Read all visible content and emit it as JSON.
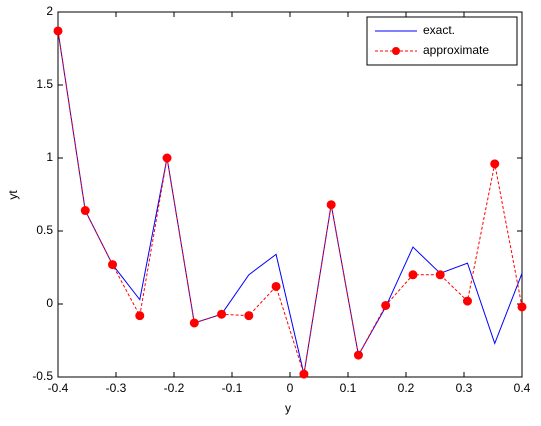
{
  "chart_data": {
    "type": "line",
    "x": [
      -0.4,
      -0.353,
      -0.306,
      -0.259,
      -0.212,
      -0.165,
      -0.118,
      -0.071,
      -0.024,
      0.024,
      0.071,
      0.118,
      0.165,
      0.212,
      0.259,
      0.306,
      0.353,
      0.4
    ],
    "series": [
      {
        "name": "exact.",
        "color": "#0000ff",
        "dash": false,
        "marker": false,
        "values": [
          1.87,
          0.64,
          0.27,
          0.03,
          1.0,
          -0.13,
          -0.07,
          0.2,
          0.34,
          -0.48,
          0.68,
          -0.35,
          -0.02,
          0.39,
          0.21,
          0.28,
          -0.27,
          0.21
        ]
      },
      {
        "name": "approximate",
        "color": "#ff0000",
        "dash": true,
        "marker": true,
        "values": [
          1.87,
          0.64,
          0.27,
          -0.08,
          1.0,
          -0.13,
          -0.07,
          -0.08,
          0.12,
          -0.48,
          0.68,
          -0.35,
          -0.01,
          0.2,
          0.2,
          0.02,
          0.96,
          -0.02
        ]
      }
    ],
    "xlabel": "y",
    "ylabel": "yt",
    "xlim": [
      -0.4,
      0.4
    ],
    "xticks": [
      -0.4,
      -0.3,
      -0.2,
      -0.1,
      0,
      0.1,
      0.2,
      0.3,
      0.4
    ],
    "ylim": [
      -0.5,
      2
    ],
    "yticks": [
      -0.5,
      0,
      0.5,
      1,
      1.5,
      2
    ],
    "legend": "upper-right",
    "grid": false
  }
}
